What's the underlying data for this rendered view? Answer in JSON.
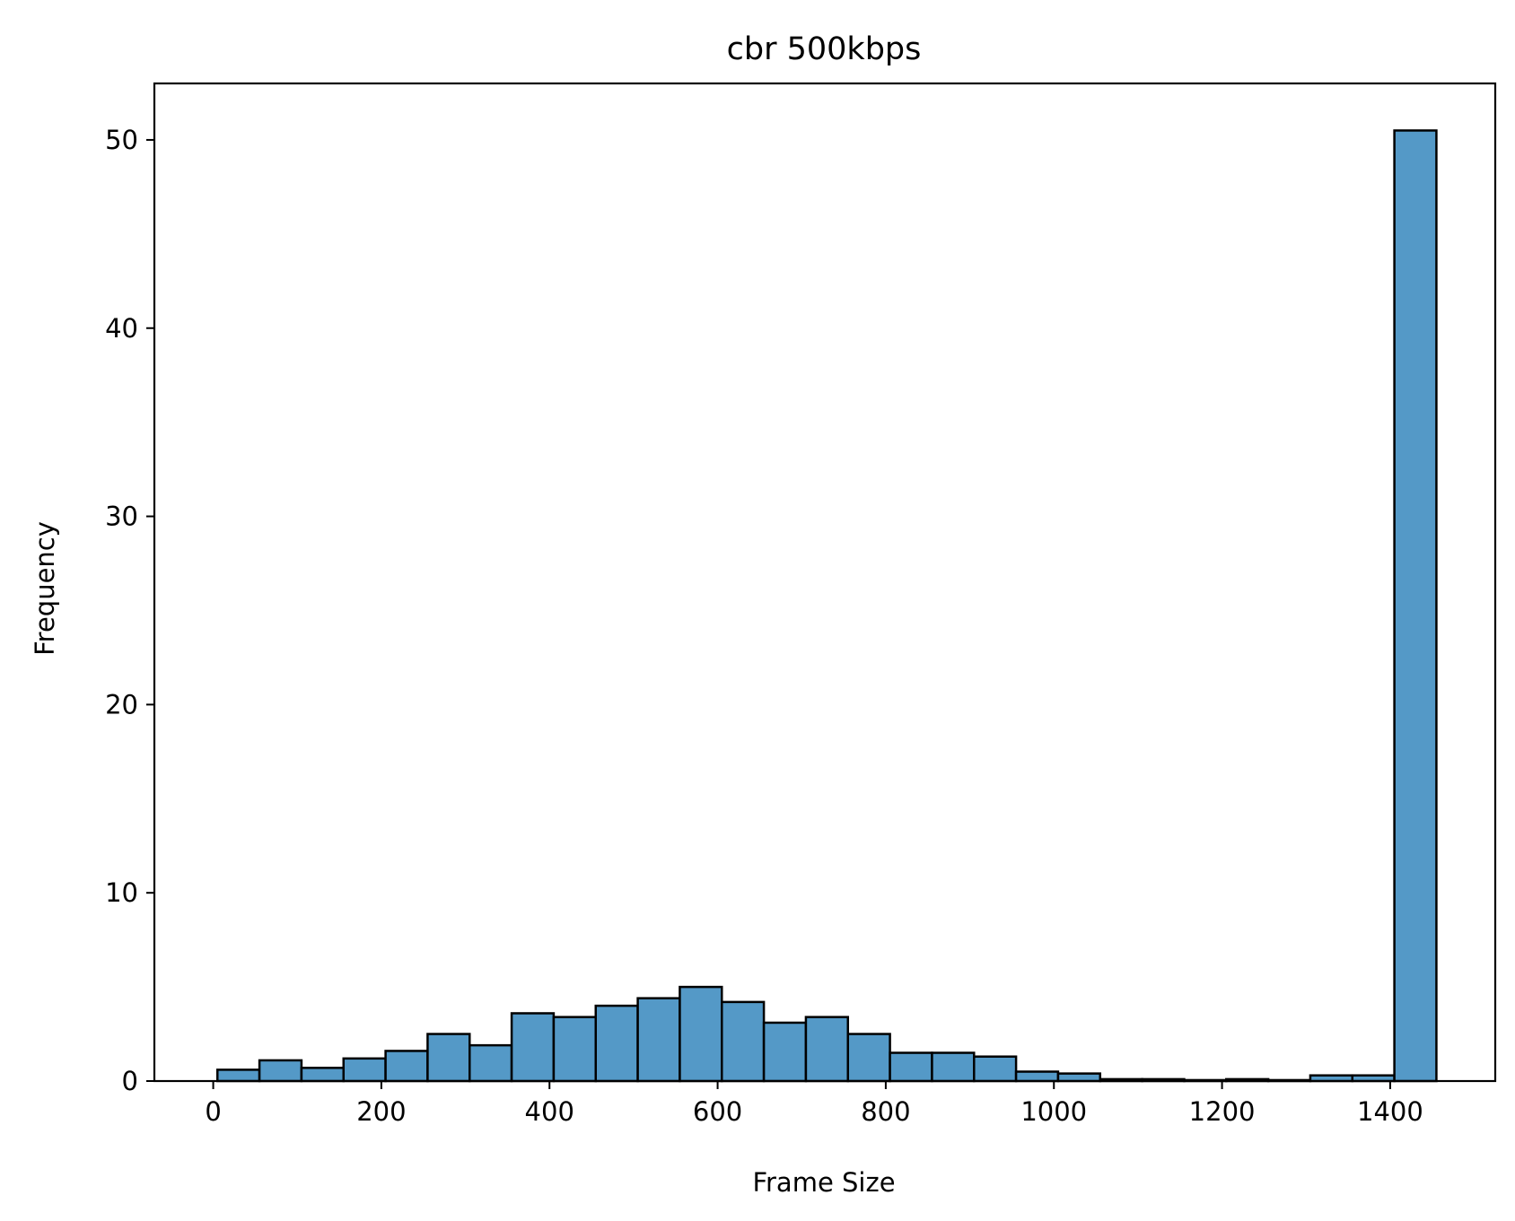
{
  "chart_data": {
    "type": "bar",
    "title": "cbr 500kbps",
    "xlabel": "Frame Size",
    "ylabel": "Frequency",
    "xlim": [
      -70,
      1525
    ],
    "ylim": [
      0,
      53
    ],
    "xticks": [
      0,
      200,
      400,
      600,
      800,
      1000,
      1200,
      1400
    ],
    "yticks": [
      0,
      10,
      20,
      30,
      40,
      50
    ],
    "grid": false,
    "bar_color": "#5499c7",
    "edge_color": "#000000",
    "bins": [
      {
        "x0": 5,
        "x1": 55,
        "value": 0.6
      },
      {
        "x0": 55,
        "x1": 105,
        "value": 1.1
      },
      {
        "x0": 105,
        "x1": 155,
        "value": 0.7
      },
      {
        "x0": 155,
        "x1": 205,
        "value": 1.2
      },
      {
        "x0": 205,
        "x1": 255,
        "value": 1.6
      },
      {
        "x0": 255,
        "x1": 305,
        "value": 2.5
      },
      {
        "x0": 305,
        "x1": 355,
        "value": 1.9
      },
      {
        "x0": 355,
        "x1": 405,
        "value": 3.6
      },
      {
        "x0": 405,
        "x1": 455,
        "value": 3.4
      },
      {
        "x0": 455,
        "x1": 505,
        "value": 4.0
      },
      {
        "x0": 505,
        "x1": 555,
        "value": 4.4
      },
      {
        "x0": 555,
        "x1": 605,
        "value": 5.0
      },
      {
        "x0": 605,
        "x1": 655,
        "value": 4.2
      },
      {
        "x0": 655,
        "x1": 705,
        "value": 3.1
      },
      {
        "x0": 705,
        "x1": 755,
        "value": 3.4
      },
      {
        "x0": 755,
        "x1": 805,
        "value": 2.5
      },
      {
        "x0": 805,
        "x1": 855,
        "value": 1.5
      },
      {
        "x0": 855,
        "x1": 905,
        "value": 1.5
      },
      {
        "x0": 905,
        "x1": 955,
        "value": 1.3
      },
      {
        "x0": 955,
        "x1": 1005,
        "value": 0.5
      },
      {
        "x0": 1005,
        "x1": 1055,
        "value": 0.4
      },
      {
        "x0": 1055,
        "x1": 1105,
        "value": 0.1
      },
      {
        "x0": 1105,
        "x1": 1155,
        "value": 0.1
      },
      {
        "x0": 1155,
        "x1": 1205,
        "value": 0.05
      },
      {
        "x0": 1205,
        "x1": 1255,
        "value": 0.1
      },
      {
        "x0": 1255,
        "x1": 1305,
        "value": 0.05
      },
      {
        "x0": 1305,
        "x1": 1355,
        "value": 0.3
      },
      {
        "x0": 1355,
        "x1": 1405,
        "value": 0.3
      },
      {
        "x0": 1405,
        "x1": 1455,
        "value": 50.5
      }
    ]
  }
}
